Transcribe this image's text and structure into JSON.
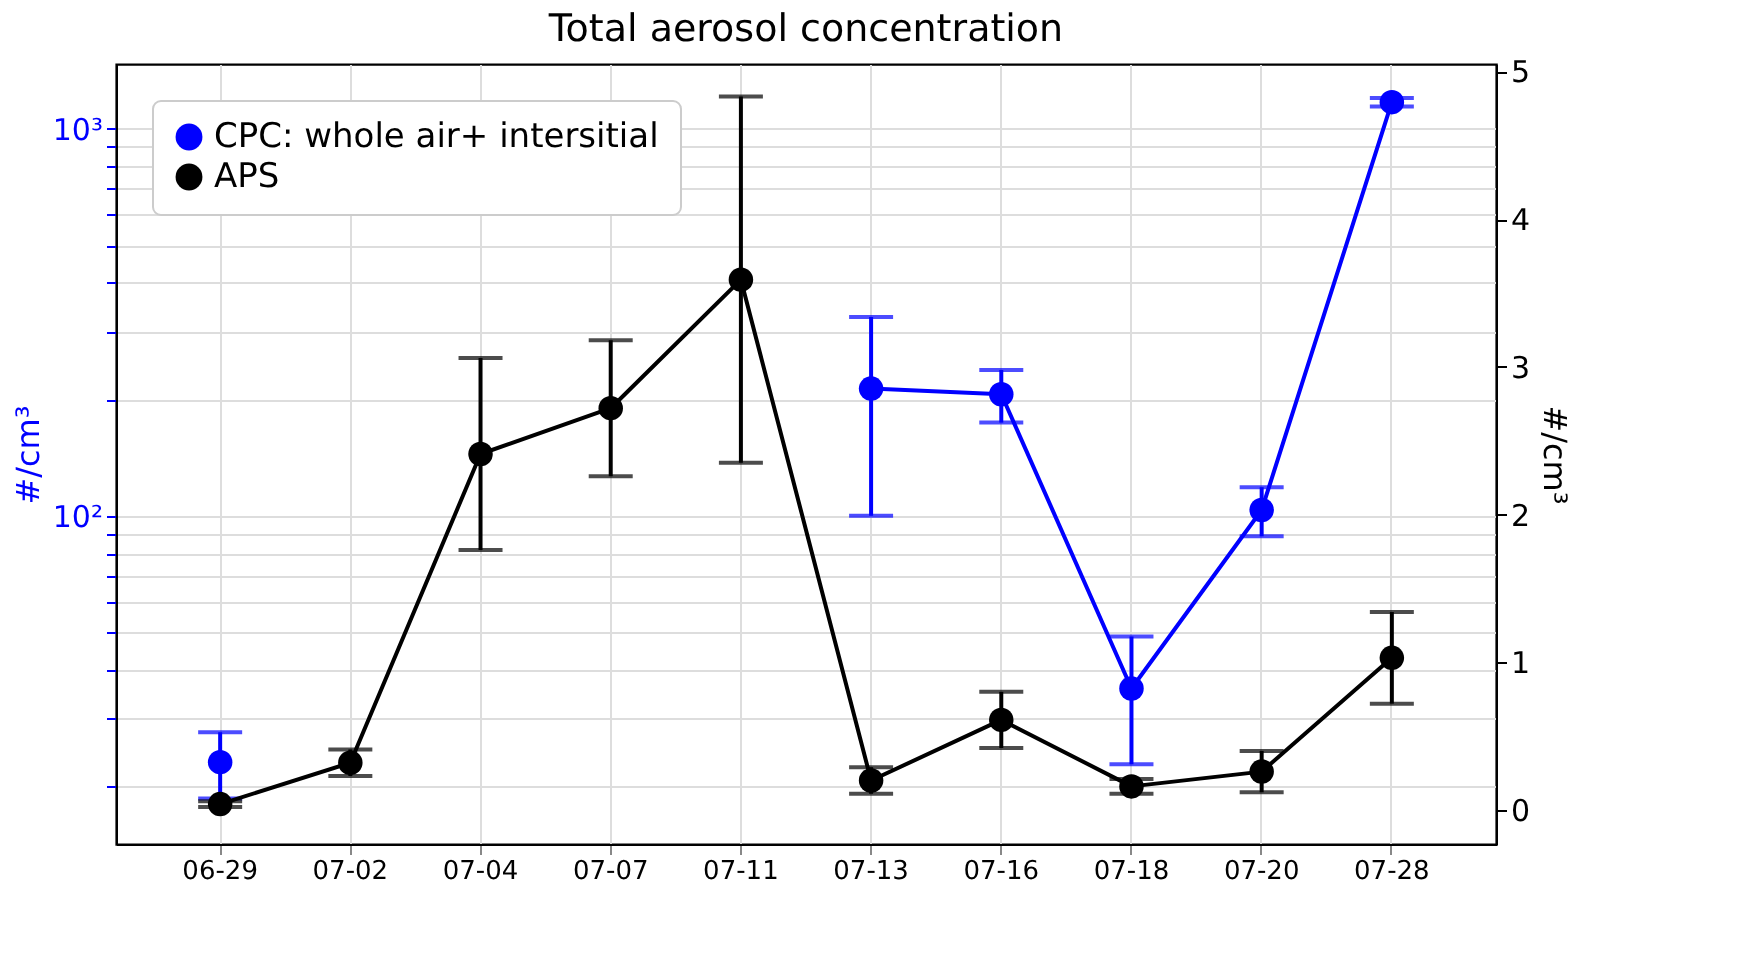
{
  "chart_data": {
    "type": "line",
    "title": "Total aerosol concentration",
    "ylabel": "#/cm³",
    "y2label": "#/cm³",
    "categories": [
      "06-29",
      "07-02",
      "07-04",
      "07-07",
      "07-11",
      "07-13",
      "07-16",
      "07-18",
      "07-20",
      "07-28"
    ],
    "series": [
      {
        "name": "CPC: whole air+ intersitial",
        "color": "#0000ff",
        "axis": "y",
        "values": [
          23.1,
          null,
          null,
          null,
          null,
          213,
          206,
          35.8,
          103.5,
          1170
        ],
        "errors": [
          4.5,
          null,
          null,
          null,
          null,
          113,
          32,
          13,
          15,
          30
        ]
      },
      {
        "name": "APS",
        "color": "#000000",
        "axis": "y2",
        "values": [
          0.04,
          0.32,
          2.41,
          2.72,
          3.59,
          0.2,
          0.61,
          0.16,
          0.26,
          1.03
        ],
        "errors": [
          0.02,
          0.09,
          0.65,
          0.46,
          1.24,
          0.09,
          0.19,
          0.05,
          0.14,
          0.31
        ]
      }
    ],
    "log": "y",
    "ylim": [
      14.2,
      1468
    ],
    "yticks": [
      {
        "value": 20,
        "label": null
      },
      {
        "value": 30,
        "label": null
      },
      {
        "value": 40,
        "label": null
      },
      {
        "value": 50,
        "label": null
      },
      {
        "value": 60,
        "label": null
      },
      {
        "value": 70,
        "label": null
      },
      {
        "value": 80,
        "label": null
      },
      {
        "value": 90,
        "label": null
      },
      {
        "value": 100,
        "label": "10²"
      },
      {
        "value": 200,
        "label": null
      },
      {
        "value": 300,
        "label": null
      },
      {
        "value": 400,
        "label": null
      },
      {
        "value": 500,
        "label": null
      },
      {
        "value": 600,
        "label": null
      },
      {
        "value": 700,
        "label": null
      },
      {
        "value": 800,
        "label": null
      },
      {
        "value": 900,
        "label": null
      },
      {
        "value": 1000,
        "label": "10³"
      }
    ],
    "y2lim": [
      -0.23,
      5.05
    ],
    "y2ticks": [
      0,
      1,
      2,
      3,
      4,
      5
    ],
    "grid": true,
    "legend": "top left",
    "marker": "circle",
    "line_style": "solid"
  }
}
